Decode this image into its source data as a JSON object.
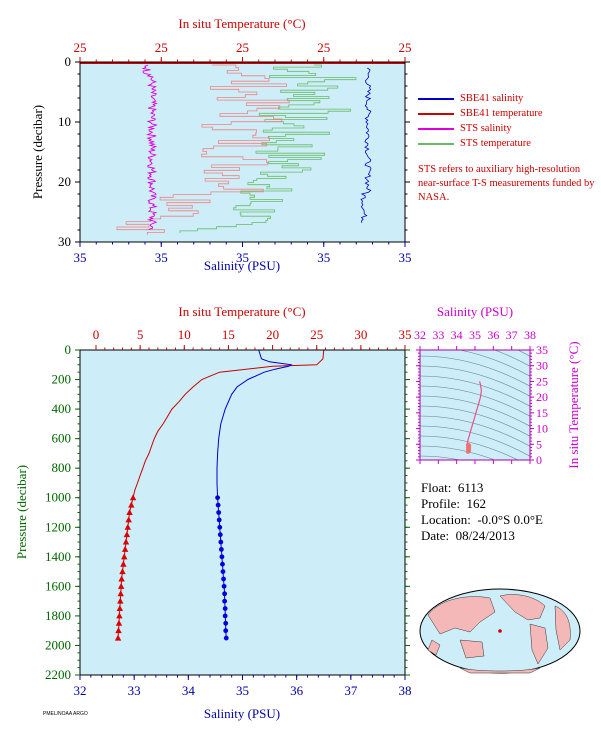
{
  "chart_data": [
    {
      "id": "top",
      "type": "line",
      "title": "",
      "top_axis": {
        "label": "In situ Temperature (°C)",
        "ticks": [
          "25",
          "25",
          "25",
          "25",
          "25"
        ],
        "color": "#cc0000"
      },
      "bottom_axis": {
        "label": "Salinity (PSU)",
        "ticks": [
          "35",
          "35",
          "35",
          "35",
          "35"
        ],
        "color": "#0000aa"
      },
      "left_axis": {
        "label": "Pressure (decibar)",
        "ticks": [
          "0",
          "10",
          "20",
          "30"
        ],
        "range": [
          0,
          30
        ],
        "inverted": true
      },
      "series": [
        {
          "name": "SBE41 salinity",
          "color": "#0000cc"
        },
        {
          "name": "SBE41 temperature",
          "color": "#cc0000"
        },
        {
          "name": "STS salinity",
          "color": "#dd00dd"
        },
        {
          "name": "STS temperature",
          "color": "#66bb66"
        }
      ],
      "legend_position": "right",
      "note": "STS refers to auxiliary high-resolution near-surface T-S measurements funded by NASA.",
      "background": "#cdeef8"
    },
    {
      "id": "bottom",
      "type": "line",
      "top_axis": {
        "label": "In situ Temperature (°C)",
        "ticks": [
          "0",
          "5",
          "10",
          "15",
          "20",
          "25",
          "30",
          "35"
        ],
        "range": [
          0,
          35
        ],
        "color": "#cc0000"
      },
      "bottom_axis": {
        "label": "Salinity (PSU)",
        "ticks": [
          "32",
          "33",
          "34",
          "35",
          "36",
          "37",
          "38"
        ],
        "range": [
          32,
          38
        ],
        "color": "#0000aa"
      },
      "left_axis": {
        "label": "Pressure (decibar)",
        "ticks": [
          "0",
          "200",
          "400",
          "600",
          "800",
          "1000",
          "1200",
          "1400",
          "1600",
          "1800",
          "2000",
          "2200"
        ],
        "range": [
          0,
          2200
        ],
        "inverted": true,
        "color": "#006600"
      },
      "temperature_profile": {
        "pressure": [
          0,
          60,
          100,
          110,
          150,
          180,
          200,
          250,
          300,
          350,
          400,
          450,
          500,
          550,
          600,
          650,
          700,
          750,
          800,
          850,
          900,
          950,
          1000,
          1050,
          1100,
          1150,
          1200,
          1250,
          1300,
          1350,
          1400,
          1450,
          1500,
          1550,
          1600,
          1650,
          1700,
          1750,
          1800,
          1850,
          1900,
          1950
        ],
        "temperature": [
          25.8,
          25.7,
          25.0,
          20.0,
          14.0,
          12.8,
          12.0,
          11.0,
          10.1,
          9.4,
          8.6,
          8.1,
          7.6,
          7.0,
          6.6,
          6.3,
          6.0,
          5.6,
          5.3,
          5.0,
          4.7,
          4.4,
          4.2,
          4.0,
          3.8,
          3.7,
          3.6,
          3.5,
          3.4,
          3.3,
          3.2,
          3.1,
          3.0,
          2.9,
          2.85,
          2.8,
          2.75,
          2.7,
          2.65,
          2.6,
          2.55,
          2.5
        ]
      },
      "salinity_profile": {
        "pressure": [
          0,
          60,
          80,
          100,
          110,
          130,
          150,
          200,
          250,
          300,
          400,
          500,
          600,
          700,
          800,
          900,
          1000,
          1050,
          1100,
          1150,
          1200,
          1250,
          1300,
          1350,
          1400,
          1450,
          1500,
          1550,
          1600,
          1650,
          1700,
          1750,
          1800,
          1850,
          1900,
          1950
        ],
        "salinity": [
          35.3,
          35.35,
          35.5,
          35.9,
          35.85,
          35.6,
          35.4,
          35.1,
          34.9,
          34.8,
          34.68,
          34.6,
          34.56,
          34.54,
          34.53,
          34.53,
          34.54,
          34.55,
          34.56,
          34.57,
          34.58,
          34.59,
          34.6,
          34.61,
          34.62,
          34.63,
          34.64,
          34.65,
          34.66,
          34.67,
          34.67,
          34.68,
          34.68,
          34.69,
          34.69,
          34.7
        ]
      },
      "marker_pressures": [
        1000,
        1050,
        1100,
        1150,
        1200,
        1250,
        1300,
        1350,
        1400,
        1450,
        1500,
        1550,
        1600,
        1650,
        1700,
        1750,
        1800,
        1850,
        1900,
        1950
      ],
      "background": "#cdeef8"
    },
    {
      "id": "ts",
      "type": "line",
      "top_axis": {
        "label": "Salinity (PSU)",
        "ticks": [
          "32",
          "33",
          "34",
          "35",
          "36",
          "37",
          "38"
        ],
        "range": [
          32,
          38
        ],
        "color": "#cc00cc"
      },
      "right_axis": {
        "label": "In situ Temperature (°C)",
        "ticks": [
          "0",
          "5",
          "10",
          "15",
          "20",
          "25",
          "30",
          "35"
        ],
        "range": [
          0,
          35
        ],
        "color": "#cc00cc"
      },
      "curve": {
        "salinity": [
          35.25,
          35.3,
          35.35,
          35.3,
          35.2,
          35.1,
          35.0,
          34.9,
          34.8,
          34.7,
          34.65,
          34.6,
          34.58,
          34.56,
          34.6,
          34.68
        ],
        "temperature": [
          25.0,
          24.0,
          22.0,
          20.0,
          18.0,
          16.0,
          14.0,
          12.0,
          10.0,
          8.0,
          7.0,
          6.0,
          5.0,
          4.5,
          3.5,
          2.6
        ]
      }
    }
  ],
  "info": {
    "float_label": "Float:",
    "float_value": "6113",
    "profile_label": "Profile:",
    "profile_value": "162",
    "location_label": "Location:",
    "location_value": "-0.0°S   0.0°E",
    "date_label": "Date:",
    "date_value": "08/24/2013"
  },
  "credit": "PMEL/NOAA ARGO",
  "colors": {
    "plot_bg": "#cdeef8",
    "temperature": "#cc0000",
    "salinity": "#0000cc",
    "sts_salinity": "#dd00dd",
    "sts_temperature": "#66bb66",
    "sts_temp_pink": "#f08080",
    "map_land": "#f4b8b8",
    "map_ocean": "#cdeef8"
  }
}
